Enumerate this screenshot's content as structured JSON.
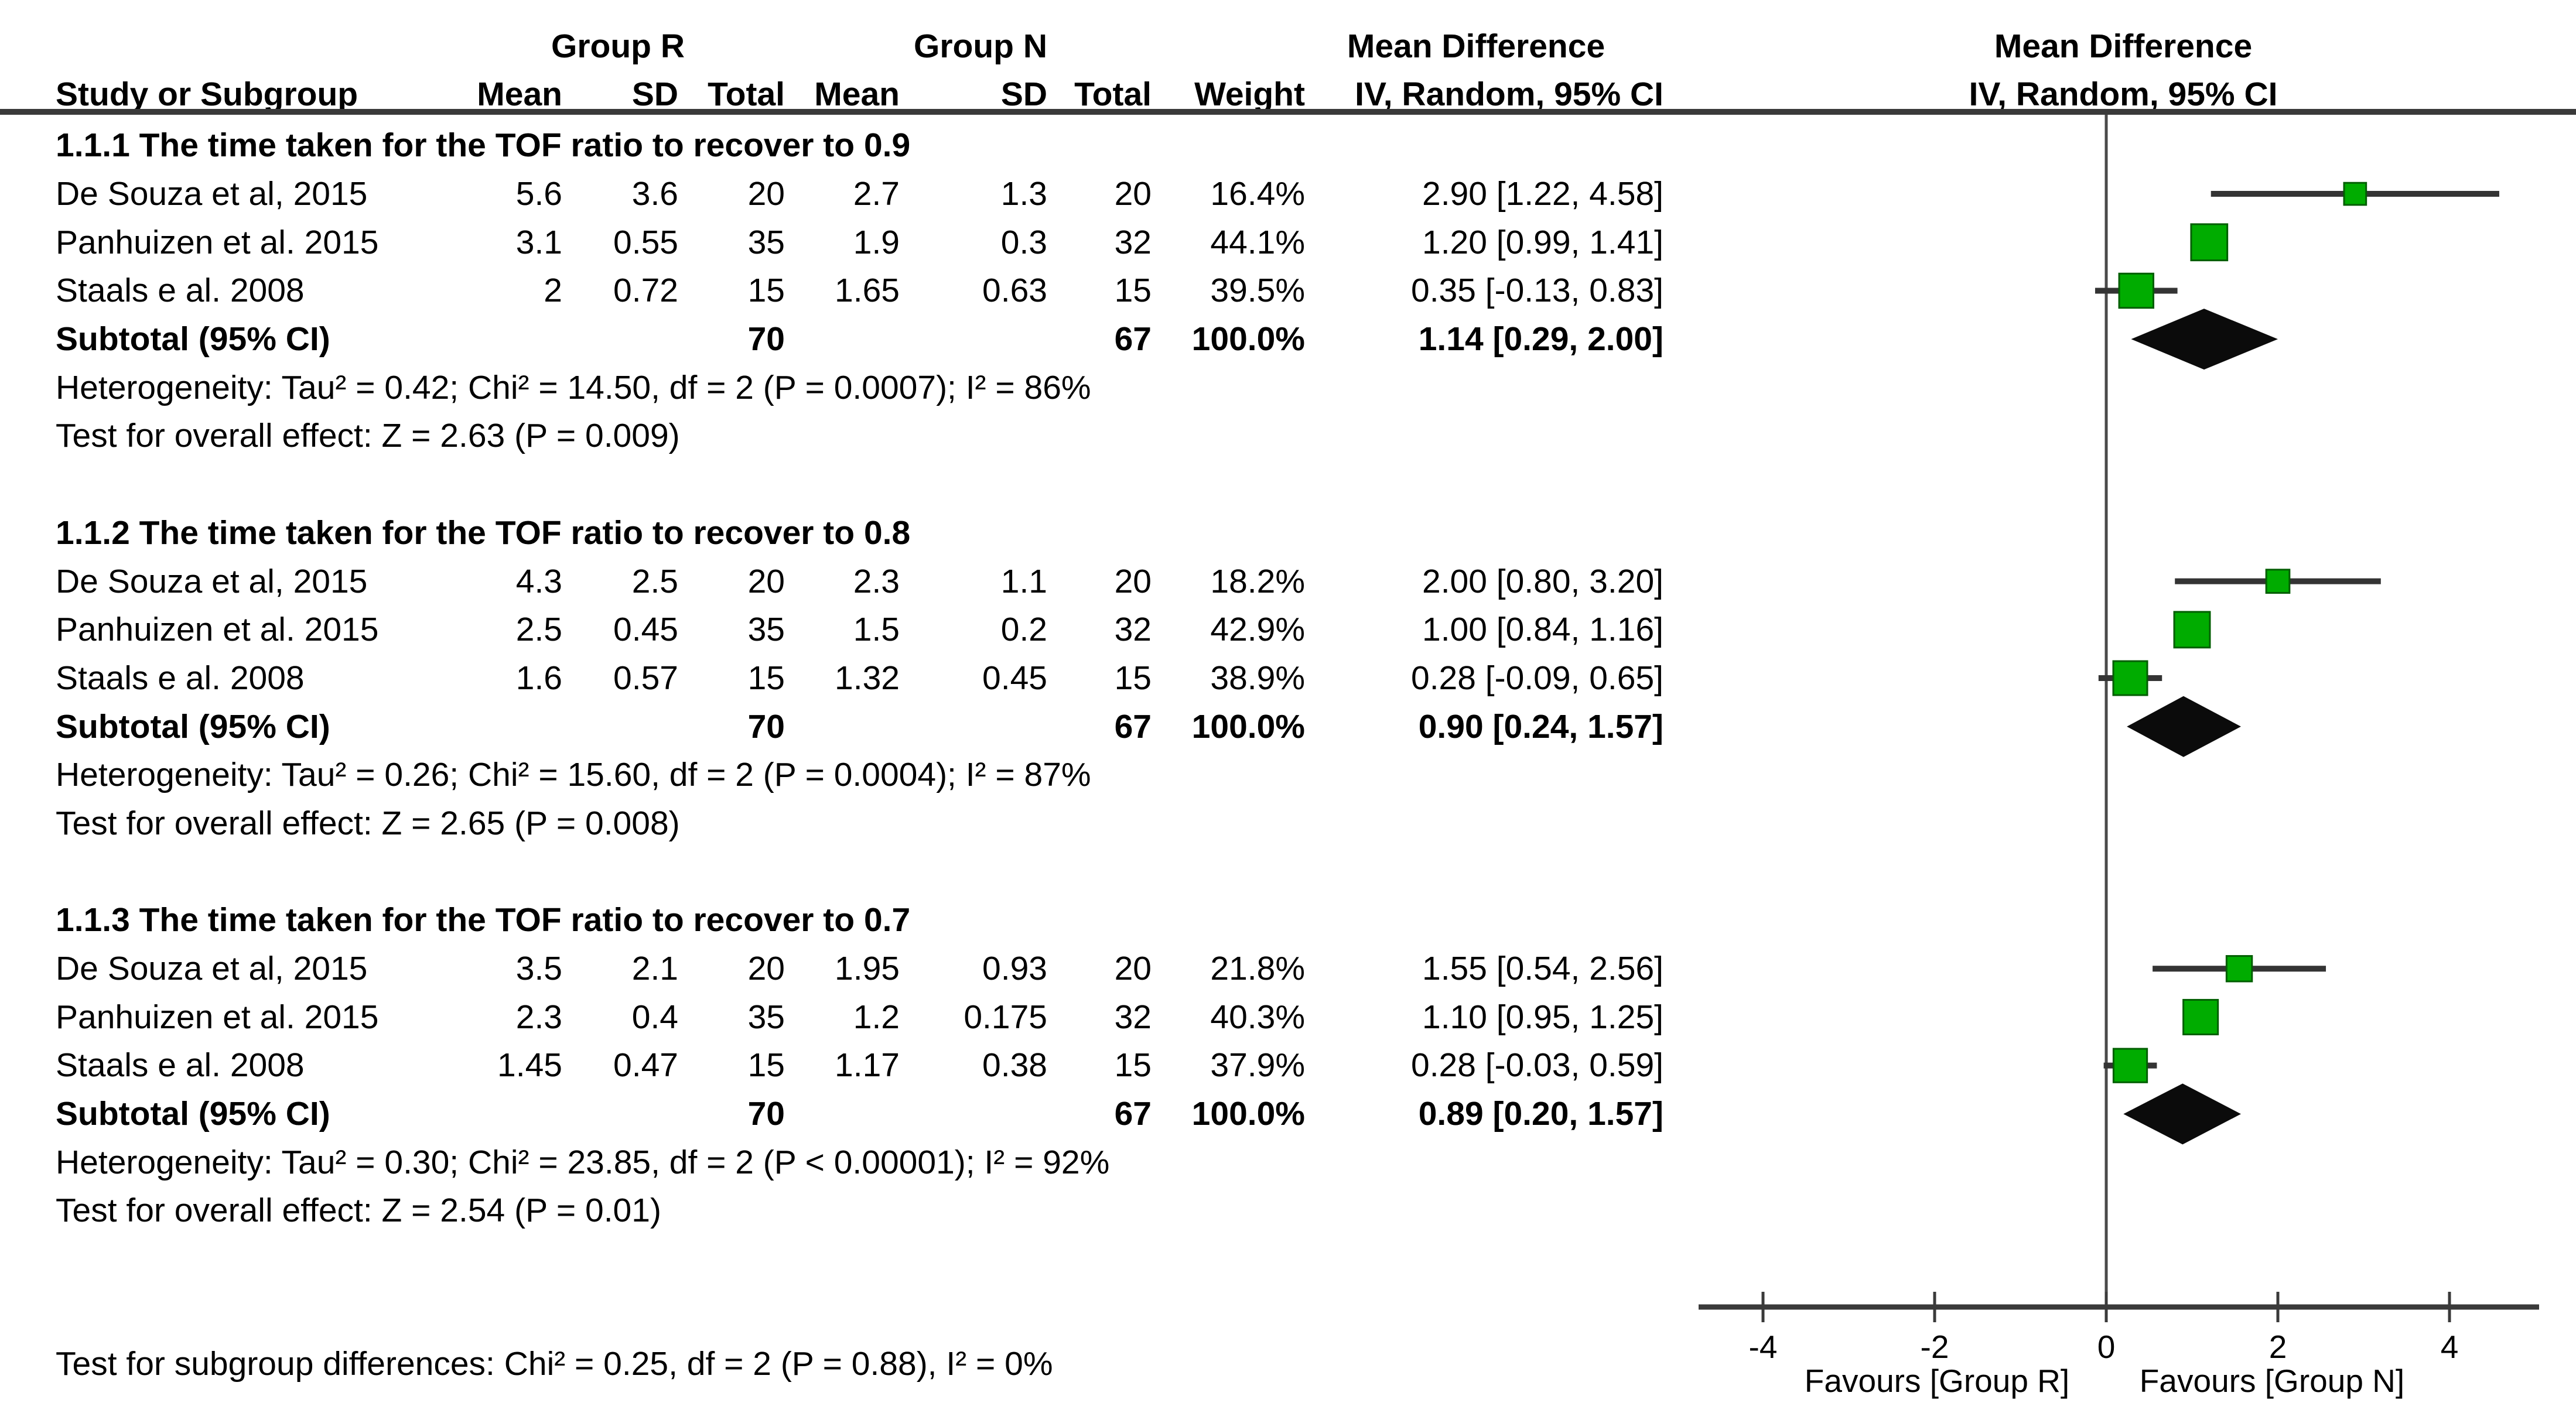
{
  "colors": {
    "square_green": "#00AC00",
    "square_border": "#005E00",
    "diamond_black": "#0B0B0B",
    "line_dark": "#343434",
    "rule_dark": "#3A3A3A"
  },
  "table_header": {
    "study": "Study or Subgroup",
    "group_r": "Group R",
    "group_n": "Group N",
    "mean": "Mean",
    "sd": "SD",
    "total": "Total",
    "weight": "Weight",
    "mean_difference": "Mean Difference",
    "method": "IV, Random, 95% CI"
  },
  "plot_header": {
    "title": "Mean Difference",
    "method": "IV, Random, 95% CI"
  },
  "axis": {
    "favours_left": "Favours [Group R]",
    "favours_right": "Favours [Group N]"
  },
  "footer": {
    "subgroup_test": "Test for subgroup differences: Chi² = 0.25, df = 2 (P = 0.88), I² = 0%"
  },
  "subgroups": [
    {
      "title": "1.1.1 The time taken for the TOF ratio to recover to 0.9",
      "studies": [
        {
          "name": "De Souza et al, 2015",
          "mean_r": "5.6",
          "sd_r": "3.6",
          "total_r": "20",
          "mean_n": "2.7",
          "sd_n": "1.3",
          "total_n": "20",
          "weight": "16.4%",
          "ci": "2.90 [1.22, 4.58]"
        },
        {
          "name": "Panhuizen et al. 2015",
          "mean_r": "3.1",
          "sd_r": "0.55",
          "total_r": "35",
          "mean_n": "1.9",
          "sd_n": "0.3",
          "total_n": "32",
          "weight": "44.1%",
          "ci": "1.20 [0.99, 1.41]"
        },
        {
          "name": "Staals e al. 2008",
          "mean_r": "2",
          "sd_r": "0.72",
          "total_r": "15",
          "mean_n": "1.65",
          "sd_n": "0.63",
          "total_n": "15",
          "weight": "39.5%",
          "ci": "0.35 [-0.13, 0.83]"
        }
      ],
      "subtotal": {
        "label": "Subtotal (95% CI)",
        "total_r": "70",
        "total_n": "67",
        "weight": "100.0%",
        "ci": "1.14 [0.29, 2.00]"
      },
      "heterogeneity": "Heterogeneity: Tau² = 0.42; Chi² = 14.50, df = 2 (P = 0.0007); I² = 86%",
      "overall_test": "Test for overall effect: Z = 2.63 (P = 0.009)"
    },
    {
      "title": "1.1.2 The time taken for the TOF ratio to recover to 0.8",
      "studies": [
        {
          "name": "De Souza et al, 2015",
          "mean_r": "4.3",
          "sd_r": "2.5",
          "total_r": "20",
          "mean_n": "2.3",
          "sd_n": "1.1",
          "total_n": "20",
          "weight": "18.2%",
          "ci": "2.00 [0.80, 3.20]"
        },
        {
          "name": "Panhuizen et al. 2015",
          "mean_r": "2.5",
          "sd_r": "0.45",
          "total_r": "35",
          "mean_n": "1.5",
          "sd_n": "0.2",
          "total_n": "32",
          "weight": "42.9%",
          "ci": "1.00 [0.84, 1.16]"
        },
        {
          "name": "Staals e al. 2008",
          "mean_r": "1.6",
          "sd_r": "0.57",
          "total_r": "15",
          "mean_n": "1.32",
          "sd_n": "0.45",
          "total_n": "15",
          "weight": "38.9%",
          "ci": "0.28 [-0.09, 0.65]"
        }
      ],
      "subtotal": {
        "label": "Subtotal (95% CI)",
        "total_r": "70",
        "total_n": "67",
        "weight": "100.0%",
        "ci": "0.90 [0.24, 1.57]"
      },
      "heterogeneity": "Heterogeneity: Tau² = 0.26; Chi² = 15.60, df = 2 (P = 0.0004); I² = 87%",
      "overall_test": "Test for overall effect: Z = 2.65 (P = 0.008)"
    },
    {
      "title": "1.1.3 The time taken for the TOF ratio to recover to 0.7",
      "studies": [
        {
          "name": "De Souza et al, 2015",
          "mean_r": "3.5",
          "sd_r": "2.1",
          "total_r": "20",
          "mean_n": "1.95",
          "sd_n": "0.93",
          "total_n": "20",
          "weight": "21.8%",
          "ci": "1.55 [0.54, 2.56]"
        },
        {
          "name": "Panhuizen et al. 2015",
          "mean_r": "2.3",
          "sd_r": "0.4",
          "total_r": "35",
          "mean_n": "1.2",
          "sd_n": "0.175",
          "total_n": "32",
          "weight": "40.3%",
          "ci": "1.10 [0.95, 1.25]"
        },
        {
          "name": "Staals e al. 2008",
          "mean_r": "1.45",
          "sd_r": "0.47",
          "total_r": "15",
          "mean_n": "1.17",
          "sd_n": "0.38",
          "total_n": "15",
          "weight": "37.9%",
          "ci": "0.28 [-0.03, 0.59]"
        }
      ],
      "subtotal": {
        "label": "Subtotal (95% CI)",
        "total_r": "70",
        "total_n": "67",
        "weight": "100.0%",
        "ci": "0.89 [0.20, 1.57]"
      },
      "heterogeneity": "Heterogeneity: Tau² = 0.30; Chi² = 23.85, df = 2 (P < 0.00001); I² = 92%",
      "overall_test": "Test for overall effect: Z = 2.54 (P = 0.01)"
    }
  ],
  "chart_data": {
    "type": "forest",
    "title": "Mean Difference",
    "effect_measure": "IV, Random, 95% CI",
    "xlim": [
      -4,
      4
    ],
    "ticks": [
      -4,
      -2,
      0,
      2,
      4
    ],
    "zero_line": 0,
    "favours_left": "Favours [Group R]",
    "favours_right": "Favours [Group N]",
    "groups": [
      {
        "name": "1.1.1 The time taken for the TOF ratio to recover to 0.9",
        "studies": [
          {
            "label": "De Souza et al, 2015",
            "est": 2.9,
            "lo": 1.22,
            "hi": 4.58,
            "weight_pct": 16.4
          },
          {
            "label": "Panhuizen et al. 2015",
            "est": 1.2,
            "lo": 0.99,
            "hi": 1.41,
            "weight_pct": 44.1
          },
          {
            "label": "Staals e al. 2008",
            "est": 0.35,
            "lo": -0.13,
            "hi": 0.83,
            "weight_pct": 39.5
          }
        ],
        "diamond": {
          "est": 1.14,
          "lo": 0.29,
          "hi": 2.0
        }
      },
      {
        "name": "1.1.2 The time taken for the TOF ratio to recover to 0.8",
        "studies": [
          {
            "label": "De Souza et al, 2015",
            "est": 2.0,
            "lo": 0.8,
            "hi": 3.2,
            "weight_pct": 18.2
          },
          {
            "label": "Panhuizen et al. 2015",
            "est": 1.0,
            "lo": 0.84,
            "hi": 1.16,
            "weight_pct": 42.9
          },
          {
            "label": "Staals e al. 2008",
            "est": 0.28,
            "lo": -0.09,
            "hi": 0.65,
            "weight_pct": 38.9
          }
        ],
        "diamond": {
          "est": 0.9,
          "lo": 0.24,
          "hi": 1.57
        }
      },
      {
        "name": "1.1.3 The time taken for the TOF ratio to recover to 0.7",
        "studies": [
          {
            "label": "De Souza et al, 2015",
            "est": 1.55,
            "lo": 0.54,
            "hi": 2.56,
            "weight_pct": 21.8
          },
          {
            "label": "Panhuizen et al. 2015",
            "est": 1.1,
            "lo": 0.95,
            "hi": 1.25,
            "weight_pct": 40.3
          },
          {
            "label": "Staals e al. 2008",
            "est": 0.28,
            "lo": -0.03,
            "hi": 0.59,
            "weight_pct": 37.9
          }
        ],
        "diamond": {
          "est": 0.89,
          "lo": 0.2,
          "hi": 1.57
        }
      }
    ]
  }
}
